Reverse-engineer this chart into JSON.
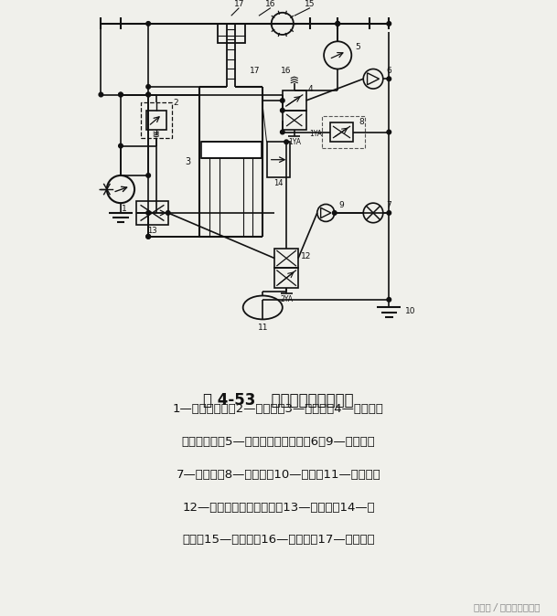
{
  "title": "图 4-53   钒孔机液压系统原理",
  "caption_lines": [
    "1—定量液压泵；2—溢流阀；3—液压缸；4—二位三通",
    "电磁换向鄀；5—单向定量液压马达；6，9—单向鄀；",
    "7—节流鄀；8—减压鄀；10—油筱；11—蓄能器；",
    "12—二位四通电磁换向鄀；13—调速鄀；14—套",
    "料杆；15—小齿轮；16—大齿轮；17—花键钒杆"
  ],
  "watermark": "头条号 / 深圳奥托士液压",
  "bg_color": "#f0f0eb",
  "line_color": "#111111"
}
